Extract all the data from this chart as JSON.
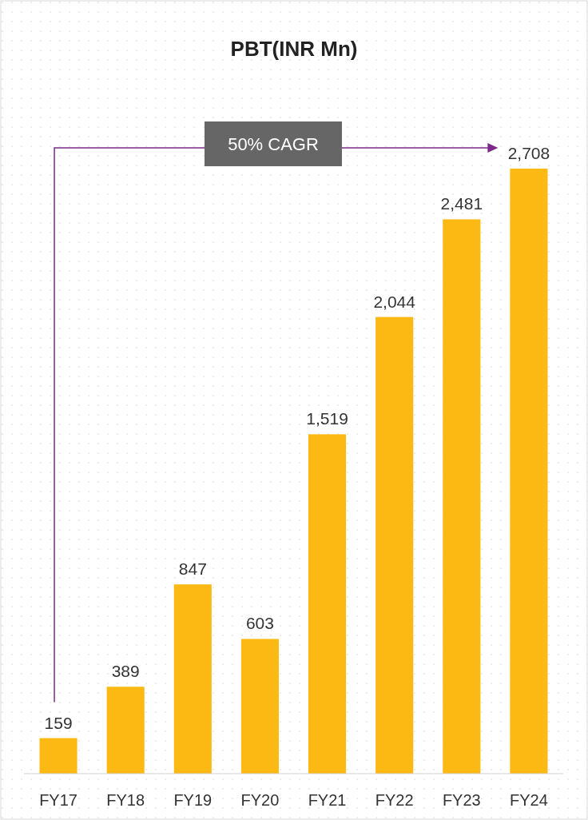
{
  "chart_data": {
    "type": "bar",
    "title": "PBT(INR Mn)",
    "categories": [
      "FY17",
      "FY18",
      "FY19",
      "FY20",
      "FY21",
      "FY22",
      "FY23",
      "FY24"
    ],
    "values": [
      159,
      389,
      847,
      603,
      1519,
      2044,
      2481,
      2708
    ],
    "value_labels": [
      "159",
      "389",
      "847",
      "603",
      "1,519",
      "2,044",
      "2,481",
      "2,708"
    ],
    "color": "#fdb913",
    "annotations": [
      "50% CAGR"
    ]
  }
}
